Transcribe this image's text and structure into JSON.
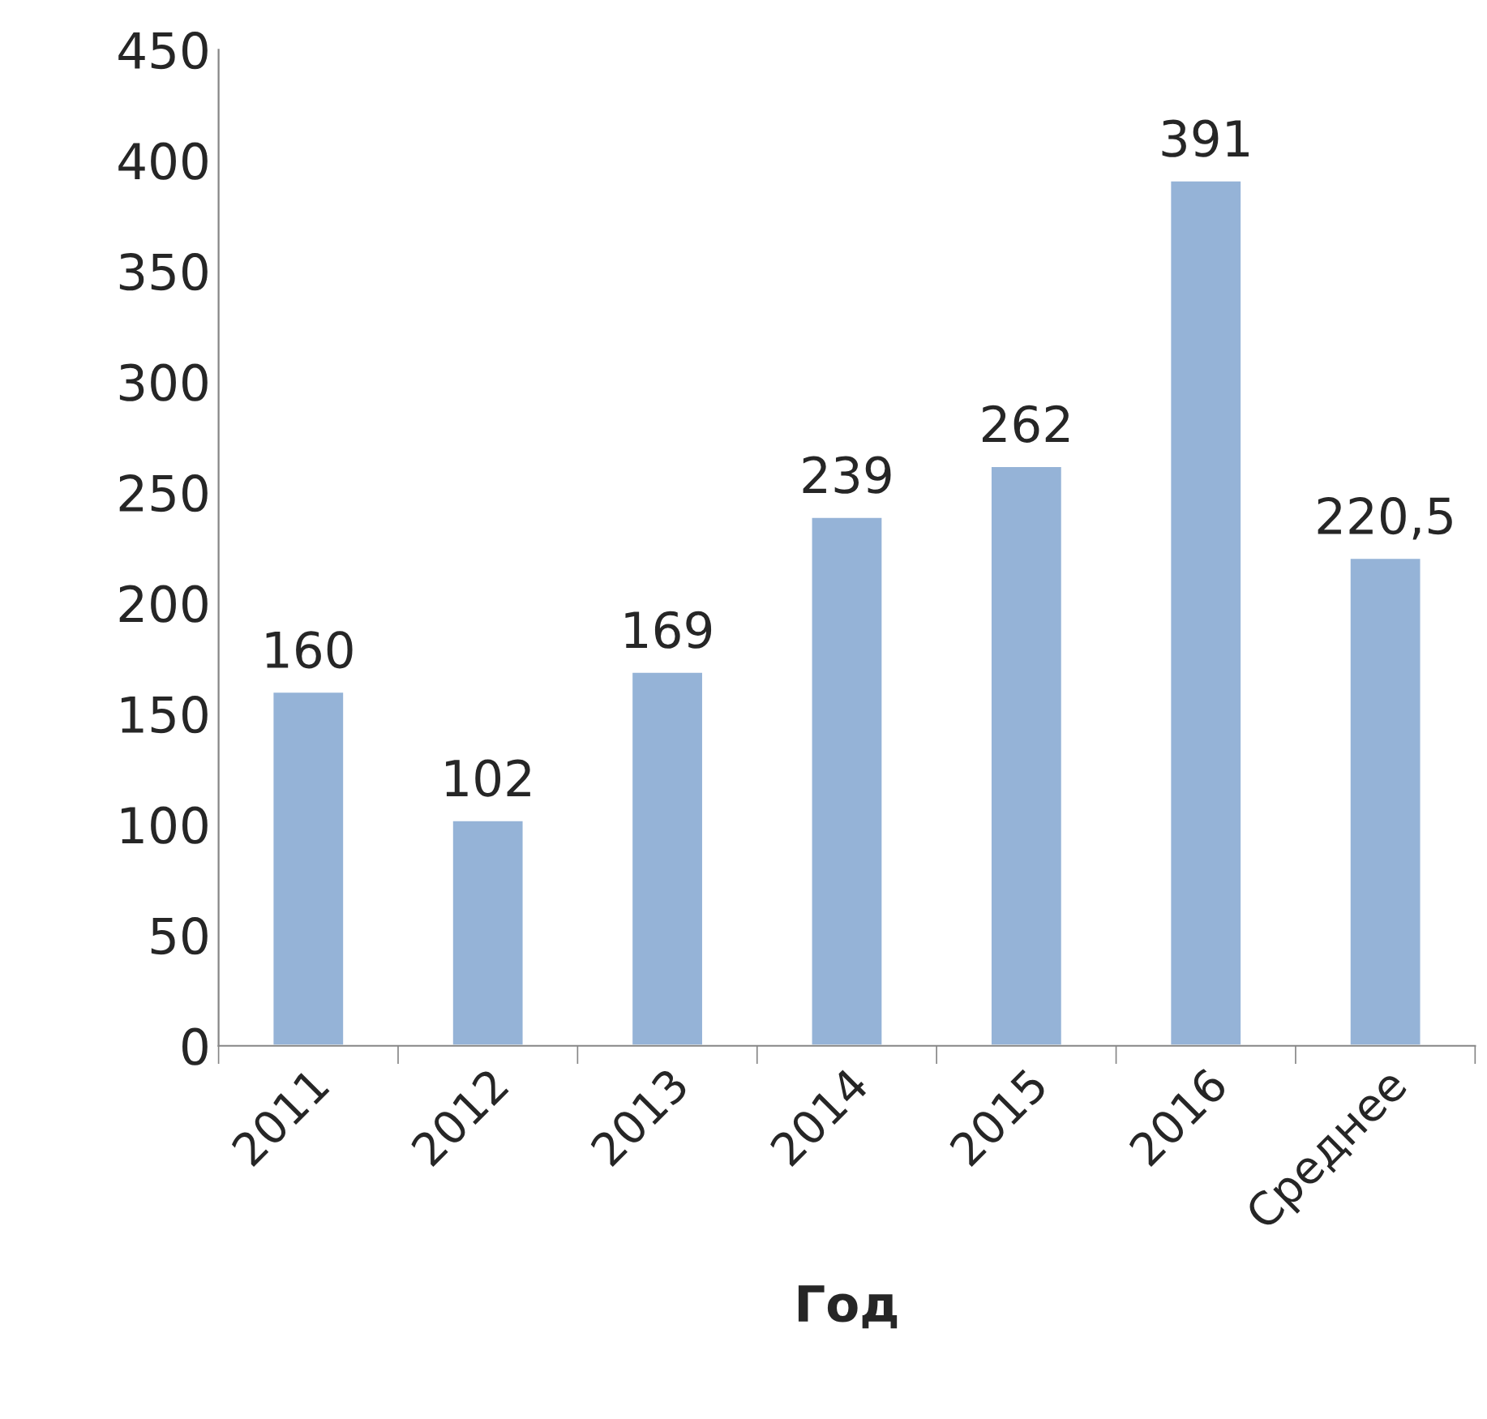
{
  "chart_data": {
    "type": "bar",
    "xlabel": "Год",
    "categories": [
      "2011",
      "2012",
      "2013",
      "2014",
      "2015",
      "2016",
      "Среднее"
    ],
    "values": [
      160,
      102,
      169,
      239,
      262,
      391,
      220.5
    ],
    "value_labels": [
      "160",
      "102",
      "169",
      "239",
      "262",
      "391",
      "220,5"
    ],
    "color": "#95b3d7",
    "ylim": [
      0,
      450
    ],
    "yticks": [
      0,
      50,
      100,
      150,
      200,
      250,
      300,
      350,
      400,
      450
    ],
    "grid": false,
    "legend": false
  }
}
